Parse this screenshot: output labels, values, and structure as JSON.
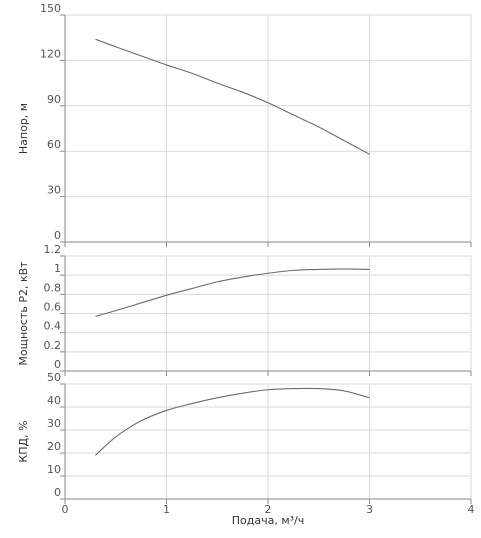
{
  "chart_data": {
    "type": "line",
    "x_axis": {
      "label": "Подача, м³/ч",
      "range": [
        0,
        4
      ],
      "ticks": [
        "0",
        "1",
        "2",
        "3",
        "4"
      ]
    },
    "grid": true,
    "colors": {
      "curve": "#6b6b6b",
      "grid": "#d9d9d9",
      "axis": "#8a8a8a"
    },
    "panels": [
      {
        "ylabel": "Напор, м",
        "ylim": [
          0,
          150
        ],
        "yticks": [
          0,
          30,
          60,
          90,
          120,
          150
        ],
        "ytick_labels": [
          "0",
          "30",
          "60",
          "90",
          "120",
          "150"
        ],
        "series": [
          {
            "x": [
              0.3,
              0.5,
              0.75,
              1.0,
              1.25,
              1.5,
              1.75,
              2.0,
              2.25,
              2.5,
              2.75,
              3.0
            ],
            "y": [
              134,
              129,
              123,
              117,
              111.5,
              105,
              99,
              92,
              84,
              76,
              67,
              58
            ]
          }
        ]
      },
      {
        "ylabel": "Мощность P2, кВт",
        "ylim": [
          0,
          1.2
        ],
        "yticks": [
          0,
          0.2,
          0.4,
          0.6,
          0.8,
          1,
          1.2
        ],
        "ytick_labels": [
          "0",
          "0.2",
          "0.4",
          "0.6",
          "0.8",
          "1",
          "1.2"
        ],
        "series": [
          {
            "x": [
              0.3,
              0.5,
              0.75,
              1.0,
              1.25,
              1.5,
              1.75,
              2.0,
              2.25,
              2.5,
              2.75,
              3.0
            ],
            "y": [
              0.57,
              0.63,
              0.71,
              0.79,
              0.86,
              0.93,
              0.98,
              1.02,
              1.05,
              1.06,
              1.065,
              1.06
            ]
          }
        ]
      },
      {
        "ylabel": "КПД, %",
        "ylim": [
          0,
          50
        ],
        "yticks": [
          0,
          10,
          20,
          30,
          40,
          50
        ],
        "ytick_labels": [
          "0",
          "10",
          "20",
          "30",
          "40",
          "50"
        ],
        "series": [
          {
            "x": [
              0.3,
              0.5,
              0.75,
              1.0,
              1.25,
              1.5,
              1.75,
              2.0,
              2.25,
              2.5,
              2.75,
              3.0
            ],
            "y": [
              19,
              27,
              34,
              38.5,
              41.5,
              44,
              46,
              47.5,
              48,
              48,
              47,
              44
            ]
          }
        ]
      }
    ]
  }
}
